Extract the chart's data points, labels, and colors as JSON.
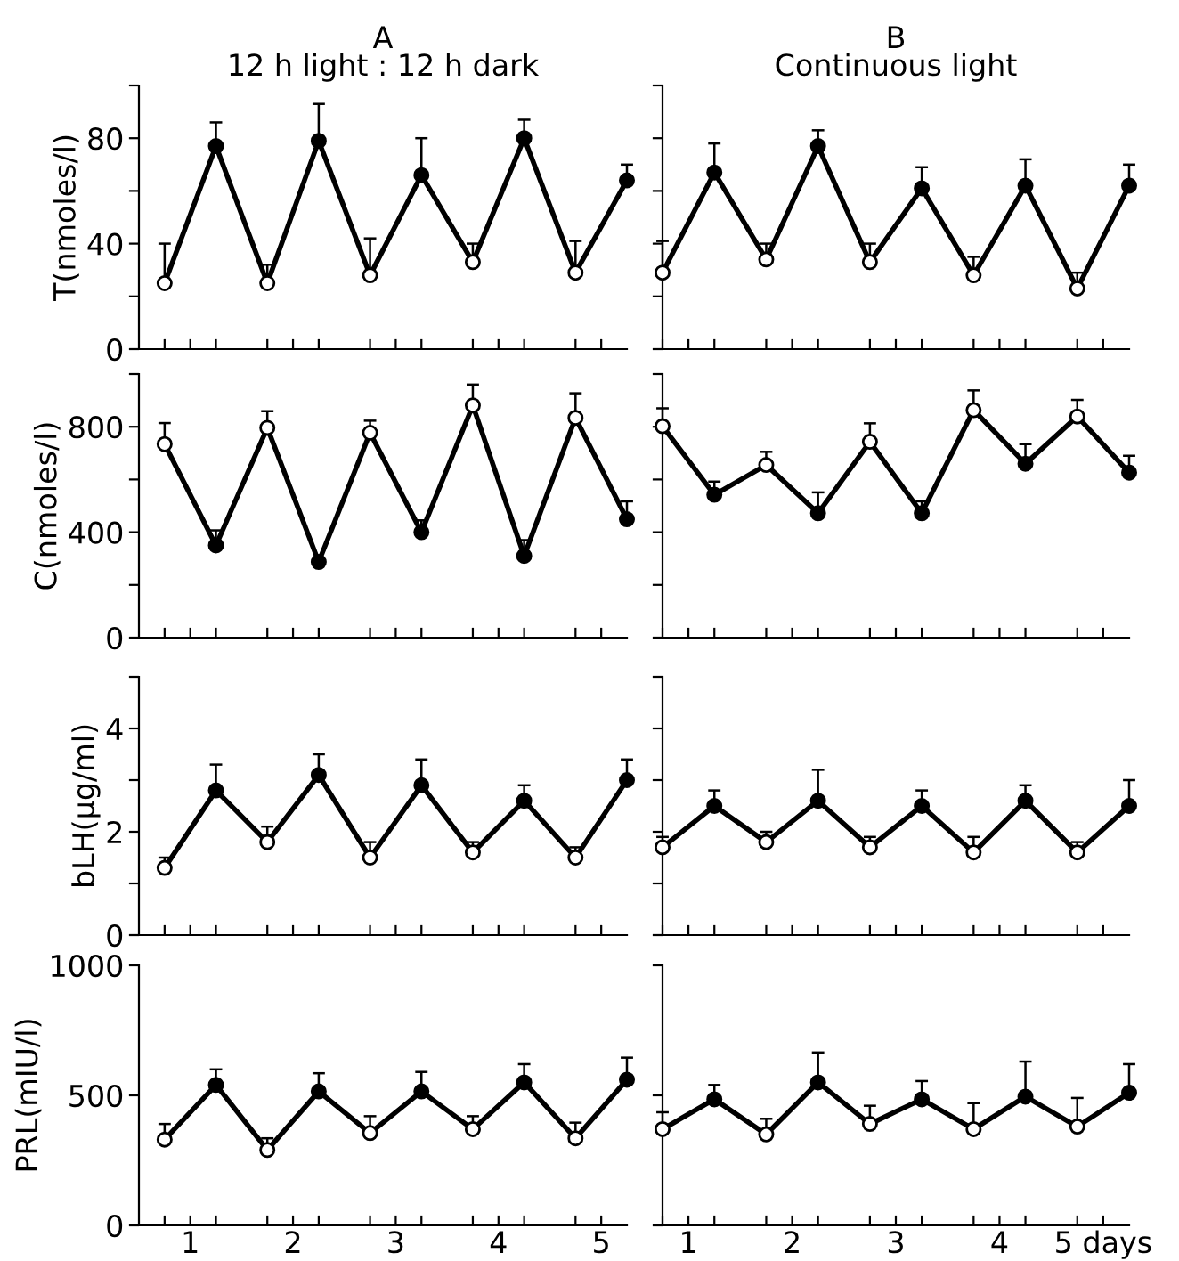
{
  "chart_data": [
    {
      "type": "line",
      "title": "A",
      "subtitle": "12 h light : 12 h dark",
      "ylabel": "T(nmoles/l)",
      "x": [
        0.75,
        1.25,
        1.75,
        2.25,
        2.75,
        3.25,
        3.75,
        4.25,
        4.75,
        5.25
      ],
      "xlim": [
        0.5,
        5.25
      ],
      "ylim": [
        0,
        100
      ],
      "xticks": [
        {
          "value": 0.75,
          "label": null
        },
        1,
        {
          "value": 1.25,
          "label": null
        },
        {
          "value": 1.75,
          "label": null
        },
        2,
        {
          "value": 2.25,
          "label": null
        },
        {
          "value": 2.75,
          "label": null
        },
        3,
        {
          "value": 3.25,
          "label": null
        },
        {
          "value": 3.75,
          "label": null
        },
        4,
        {
          "value": 4.25,
          "label": null
        },
        {
          "value": 4.75,
          "label": null
        },
        5
      ],
      "yticks": [
        0,
        {
          "value": 20,
          "label": null
        },
        40,
        {
          "value": 60,
          "label": null
        },
        80,
        {
          "value": 100,
          "label": null
        }
      ],
      "tick_labels": "y",
      "marker": "circle",
      "line_style": "solid",
      "series": [
        {
          "color": "#000000",
          "colors": [
            "#ffffff",
            "#000000",
            "#ffffff",
            "#000000",
            "#ffffff",
            "#000000",
            "#ffffff",
            "#000000",
            "#ffffff",
            "#000000"
          ],
          "values": [
            25,
            77,
            25,
            79,
            28,
            66,
            33,
            80,
            29,
            64
          ],
          "errors": [
            [
              25,
              40
            ],
            [
              77,
              86
            ],
            [
              25,
              32
            ],
            [
              79,
              93
            ],
            [
              28,
              42
            ],
            [
              66,
              80
            ],
            [
              33,
              40
            ],
            [
              80,
              87
            ],
            [
              29,
              41
            ],
            [
              64,
              70
            ]
          ]
        }
      ]
    },
    {
      "type": "line",
      "title": "B",
      "subtitle": "Continuous light",
      "x": [
        0.75,
        1.25,
        1.75,
        2.25,
        2.75,
        3.25,
        3.75,
        4.25,
        4.75,
        5.25
      ],
      "xlim": [
        0.75,
        5.25
      ],
      "ylim": [
        0,
        100
      ],
      "xticks": [
        {
          "value": 0.75,
          "label": null
        },
        1,
        {
          "value": 1.25,
          "label": null
        },
        {
          "value": 1.75,
          "label": null
        },
        2,
        {
          "value": 2.25,
          "label": null
        },
        {
          "value": 2.75,
          "label": null
        },
        3,
        {
          "value": 3.25,
          "label": null
        },
        {
          "value": 3.75,
          "label": null
        },
        4,
        {
          "value": 4.25,
          "label": null
        },
        {
          "value": 4.75,
          "label": null
        },
        5
      ],
      "yticks": [
        0,
        {
          "value": 20,
          "label": null
        },
        40,
        {
          "value": 60,
          "label": null
        },
        80,
        {
          "value": 100,
          "label": null
        }
      ],
      "tick_labels": false,
      "marker": "circle",
      "line_style": "solid",
      "series": [
        {
          "color": "#000000",
          "colors": [
            "#ffffff",
            "#000000",
            "#ffffff",
            "#000000",
            "#ffffff",
            "#000000",
            "#ffffff",
            "#000000",
            "#ffffff",
            "#000000"
          ],
          "values": [
            29,
            67,
            34,
            77,
            33,
            61,
            28,
            62,
            23,
            62
          ],
          "errors": [
            [
              29,
              41
            ],
            [
              67,
              78
            ],
            [
              34,
              40
            ],
            [
              77,
              83
            ],
            [
              33,
              40
            ],
            [
              61,
              69
            ],
            [
              28,
              35
            ],
            [
              62,
              72
            ],
            [
              23,
              29
            ],
            [
              62,
              70
            ]
          ]
        }
      ]
    },
    {
      "type": "line",
      "ylabel": "C(nmoles/l)",
      "x": [
        0.75,
        1.25,
        1.75,
        2.25,
        2.75,
        3.25,
        3.75,
        4.25,
        4.75,
        5.25
      ],
      "xlim": [
        0.5,
        5.25
      ],
      "ylim": [
        0,
        1000
      ],
      "xticks": [
        {
          "value": 0.75,
          "label": null
        },
        1,
        {
          "value": 1.25,
          "label": null
        },
        {
          "value": 1.75,
          "label": null
        },
        2,
        {
          "value": 2.25,
          "label": null
        },
        {
          "value": 2.75,
          "label": null
        },
        3,
        {
          "value": 3.25,
          "label": null
        },
        {
          "value": 3.75,
          "label": null
        },
        4,
        {
          "value": 4.25,
          "label": null
        },
        {
          "value": 4.75,
          "label": null
        },
        5
      ],
      "yticks": [
        0,
        {
          "value": 200,
          "label": null
        },
        400,
        {
          "value": 600,
          "label": null
        },
        800,
        {
          "value": 1000,
          "label": null
        }
      ],
      "tick_labels": "y",
      "marker": "circle",
      "line_style": "solid",
      "series": [
        {
          "color": "#000000",
          "colors": [
            "#ffffff",
            "#000000",
            "#ffffff",
            "#000000",
            "#ffffff",
            "#000000",
            "#ffffff",
            "#000000",
            "#ffffff",
            "#000000"
          ],
          "values": [
            734,
            350,
            796,
            287,
            777,
            400,
            881,
            310,
            834,
            449
          ],
          "errors": [
            [
              734,
              814
            ],
            [
              350,
              407
            ],
            [
              796,
              859
            ],
            null,
            [
              777,
              823
            ],
            [
              400,
              445
            ],
            [
              881,
              960
            ],
            [
              310,
              370
            ],
            [
              834,
              927
            ],
            [
              449,
              517
            ]
          ]
        }
      ]
    },
    {
      "type": "line",
      "x": [
        0.75,
        1.25,
        1.75,
        2.25,
        2.75,
        3.25,
        3.75,
        4.25,
        4.75,
        5.25
      ],
      "xlim": [
        0.75,
        5.25
      ],
      "ylim": [
        0,
        1000
      ],
      "xticks": [
        {
          "value": 0.75,
          "label": null
        },
        1,
        {
          "value": 1.25,
          "label": null
        },
        {
          "value": 1.75,
          "label": null
        },
        2,
        {
          "value": 2.25,
          "label": null
        },
        {
          "value": 2.75,
          "label": null
        },
        3,
        {
          "value": 3.25,
          "label": null
        },
        {
          "value": 3.75,
          "label": null
        },
        4,
        {
          "value": 4.25,
          "label": null
        },
        {
          "value": 4.75,
          "label": null
        },
        5
      ],
      "yticks": [
        0,
        {
          "value": 200,
          "label": null
        },
        400,
        {
          "value": 600,
          "label": null
        },
        800,
        {
          "value": 1000,
          "label": null
        }
      ],
      "tick_labels": false,
      "marker": "circle",
      "line_style": "solid",
      "series": [
        {
          "color": "#000000",
          "colors": [
            "#ffffff",
            "#000000",
            "#ffffff",
            "#000000",
            "#ffffff",
            "#000000",
            "#ffffff",
            "#000000",
            "#ffffff",
            "#000000"
          ],
          "values": [
            802,
            542,
            655,
            472,
            743,
            472,
            863,
            660,
            839,
            626
          ],
          "errors": [
            [
              802,
              870
            ],
            [
              542,
              592
            ],
            [
              655,
              705
            ],
            [
              472,
              551
            ],
            [
              743,
              813
            ],
            [
              472,
              517
            ],
            [
              863,
              938
            ],
            [
              660,
              734
            ],
            [
              839,
              902
            ],
            [
              626,
              690
            ]
          ]
        }
      ]
    },
    {
      "type": "line",
      "ylabel": "bLH(μg/ml)",
      "x": [
        0.75,
        1.25,
        1.75,
        2.25,
        2.75,
        3.25,
        3.75,
        4.25,
        4.75,
        5.25
      ],
      "xlim": [
        0.5,
        5.25
      ],
      "ylim": [
        0,
        5
      ],
      "xticks": [
        {
          "value": 0.75,
          "label": null
        },
        1,
        {
          "value": 1.25,
          "label": null
        },
        {
          "value": 1.75,
          "label": null
        },
        2,
        {
          "value": 2.25,
          "label": null
        },
        {
          "value": 2.75,
          "label": null
        },
        3,
        {
          "value": 3.25,
          "label": null
        },
        {
          "value": 3.75,
          "label": null
        },
        4,
        {
          "value": 4.25,
          "label": null
        },
        {
          "value": 4.75,
          "label": null
        },
        5
      ],
      "yticks": [
        0,
        {
          "value": 1,
          "label": null
        },
        2,
        {
          "value": 3,
          "label": null
        },
        4,
        {
          "value": 5,
          "label": null
        }
      ],
      "tick_labels": "y",
      "marker": "circle",
      "line_style": "solid",
      "series": [
        {
          "color": "#000000",
          "colors": [
            "#ffffff",
            "#000000",
            "#ffffff",
            "#000000",
            "#ffffff",
            "#000000",
            "#ffffff",
            "#000000",
            "#ffffff",
            "#000000"
          ],
          "values": [
            1.3,
            2.8,
            1.8,
            3.1,
            1.5,
            2.9,
            1.6,
            2.6,
            1.5,
            3.0
          ],
          "errors": [
            [
              1.3,
              1.5
            ],
            [
              2.8,
              3.3
            ],
            [
              1.8,
              2.1
            ],
            [
              3.1,
              3.5
            ],
            [
              1.5,
              1.8
            ],
            [
              2.9,
              3.4
            ],
            [
              1.6,
              1.8
            ],
            [
              2.6,
              2.9
            ],
            [
              1.5,
              1.7
            ],
            [
              3.0,
              3.4
            ]
          ]
        }
      ]
    },
    {
      "type": "line",
      "x": [
        0.75,
        1.25,
        1.75,
        2.25,
        2.75,
        3.25,
        3.75,
        4.25,
        4.75,
        5.25
      ],
      "xlim": [
        0.75,
        5.25
      ],
      "ylim": [
        0,
        5
      ],
      "xticks": [
        {
          "value": 0.75,
          "label": null
        },
        1,
        {
          "value": 1.25,
          "label": null
        },
        {
          "value": 1.75,
          "label": null
        },
        2,
        {
          "value": 2.25,
          "label": null
        },
        {
          "value": 2.75,
          "label": null
        },
        3,
        {
          "value": 3.25,
          "label": null
        },
        {
          "value": 3.75,
          "label": null
        },
        4,
        {
          "value": 4.25,
          "label": null
        },
        {
          "value": 4.75,
          "label": null
        },
        5
      ],
      "yticks": [
        0,
        {
          "value": 1,
          "label": null
        },
        2,
        {
          "value": 3,
          "label": null
        },
        4,
        {
          "value": 5,
          "label": null
        }
      ],
      "tick_labels": false,
      "marker": "circle",
      "line_style": "solid",
      "series": [
        {
          "color": "#000000",
          "colors": [
            "#ffffff",
            "#000000",
            "#ffffff",
            "#000000",
            "#ffffff",
            "#000000",
            "#ffffff",
            "#000000",
            "#ffffff",
            "#000000"
          ],
          "values": [
            1.7,
            2.5,
            1.8,
            2.6,
            1.7,
            2.5,
            1.6,
            2.6,
            1.6,
            2.5
          ],
          "errors": [
            [
              1.7,
              1.9
            ],
            [
              2.5,
              2.8
            ],
            [
              1.8,
              2.0
            ],
            [
              2.6,
              3.2
            ],
            [
              1.7,
              1.9
            ],
            [
              2.5,
              2.8
            ],
            [
              1.6,
              1.9
            ],
            [
              2.6,
              2.9
            ],
            [
              1.6,
              1.8
            ],
            [
              2.5,
              3.0
            ]
          ]
        }
      ]
    },
    {
      "type": "line",
      "ylabel": "PRL(mIU/l)",
      "x": [
        0.75,
        1.25,
        1.75,
        2.25,
        2.75,
        3.25,
        3.75,
        4.25,
        4.75,
        5.25
      ],
      "xlim": [
        0.5,
        5.25
      ],
      "ylim": [
        0,
        1000
      ],
      "xticks": [
        {
          "value": 0.75,
          "label": null
        },
        1,
        {
          "value": 1.25,
          "label": null
        },
        {
          "value": 1.75,
          "label": null
        },
        2,
        {
          "value": 2.25,
          "label": null
        },
        {
          "value": 2.75,
          "label": null
        },
        3,
        {
          "value": 3.25,
          "label": null
        },
        {
          "value": 3.75,
          "label": null
        },
        4,
        {
          "value": 4.25,
          "label": null
        },
        {
          "value": 4.75,
          "label": null
        },
        5
      ],
      "yticks": [
        0,
        500,
        1000
      ],
      "marker": "circle",
      "line_style": "solid",
      "series": [
        {
          "color": "#000000",
          "colors": [
            "#ffffff",
            "#000000",
            "#ffffff",
            "#000000",
            "#ffffff",
            "#000000",
            "#ffffff",
            "#000000",
            "#ffffff",
            "#000000"
          ],
          "values": [
            330,
            540,
            290,
            515,
            355,
            515,
            370,
            550,
            335,
            560
          ],
          "errors": [
            [
              330,
              390
            ],
            [
              540,
              600
            ],
            [
              290,
              335
            ],
            [
              515,
              585
            ],
            [
              355,
              420
            ],
            [
              515,
              590
            ],
            [
              370,
              420
            ],
            [
              550,
              620
            ],
            [
              335,
              395
            ],
            [
              560,
              645
            ]
          ]
        }
      ]
    },
    {
      "type": "line",
      "x": [
        0.75,
        1.25,
        1.75,
        2.25,
        2.75,
        3.25,
        3.75,
        4.25,
        4.75,
        5.25
      ],
      "xlim": [
        0.75,
        5.25
      ],
      "ylim": [
        0,
        1000
      ],
      "xticks": [
        {
          "value": 0.75,
          "label": null
        },
        1,
        {
          "value": 1.25,
          "label": null
        },
        {
          "value": 1.75,
          "label": null
        },
        2,
        {
          "value": 2.25,
          "label": null
        },
        {
          "value": 2.75,
          "label": null
        },
        3,
        {
          "value": 3.25,
          "label": null
        },
        {
          "value": 3.75,
          "label": null
        },
        4,
        {
          "value": 4.25,
          "label": null
        },
        {
          "value": 4.75,
          "label": null
        },
        {
          "value": 5,
          "label": "5 days"
        }
      ],
      "yticks": [
        0,
        500,
        1000
      ],
      "tick_labels": "x",
      "marker": "circle",
      "line_style": "solid",
      "series": [
        {
          "color": "#000000",
          "colors": [
            "#ffffff",
            "#000000",
            "#ffffff",
            "#000000",
            "#ffffff",
            "#000000",
            "#ffffff",
            "#000000",
            "#ffffff",
            "#000000"
          ],
          "values": [
            370,
            485,
            350,
            550,
            390,
            485,
            370,
            495,
            380,
            510
          ],
          "errors": [
            [
              370,
              435
            ],
            [
              485,
              540
            ],
            [
              350,
              410
            ],
            [
              550,
              665
            ],
            [
              390,
              460
            ],
            [
              485,
              555
            ],
            [
              370,
              470
            ],
            [
              495,
              630
            ],
            [
              380,
              490
            ],
            [
              510,
              620
            ]
          ]
        }
      ]
    }
  ]
}
